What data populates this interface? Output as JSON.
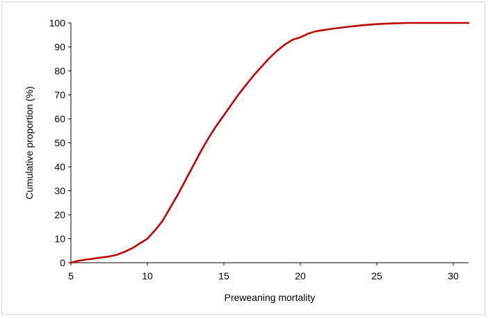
{
  "chart_data": {
    "type": "line",
    "xlabel": "Preweaning mortality",
    "ylabel": "Cumulative proportion (%)",
    "xlim": [
      5,
      31
    ],
    "ylim": [
      0,
      100
    ],
    "x_ticks": [
      5,
      10,
      15,
      20,
      25,
      30
    ],
    "y_ticks": [
      0,
      10,
      20,
      30,
      40,
      50,
      60,
      70,
      80,
      90,
      100
    ],
    "grid": false,
    "legend": "none",
    "line_color": "#c00000",
    "series": [
      {
        "x": [
          5.0,
          5.5,
          6.0,
          6.5,
          7.0,
          7.5,
          8.0,
          8.5,
          9.0,
          9.5,
          10.0,
          10.5,
          11.0,
          11.5,
          12.0,
          12.5,
          13.0,
          13.5,
          14.0,
          14.5,
          15.0,
          15.5,
          16.0,
          16.5,
          17.0,
          17.5,
          18.0,
          18.5,
          19.0,
          19.5,
          20.0,
          20.5,
          21.0,
          21.5,
          22.0,
          23.0,
          24.0,
          25.0,
          26.0,
          27.0,
          28.0,
          29.0,
          30.0,
          31.0
        ],
        "y": [
          0,
          0.8,
          1.3,
          1.7,
          2.2,
          2.6,
          3.3,
          4.5,
          6.0,
          8.0,
          10.0,
          13.5,
          17.5,
          23.0,
          28.5,
          34.5,
          40.5,
          46.5,
          52.0,
          57.0,
          61.5,
          66.0,
          70.5,
          74.5,
          78.5,
          82.0,
          85.5,
          88.5,
          91.0,
          93.0,
          94.0,
          95.5,
          96.5,
          97.0,
          97.5,
          98.3,
          99.0,
          99.5,
          99.8,
          100,
          100,
          100,
          100,
          100
        ]
      }
    ]
  }
}
